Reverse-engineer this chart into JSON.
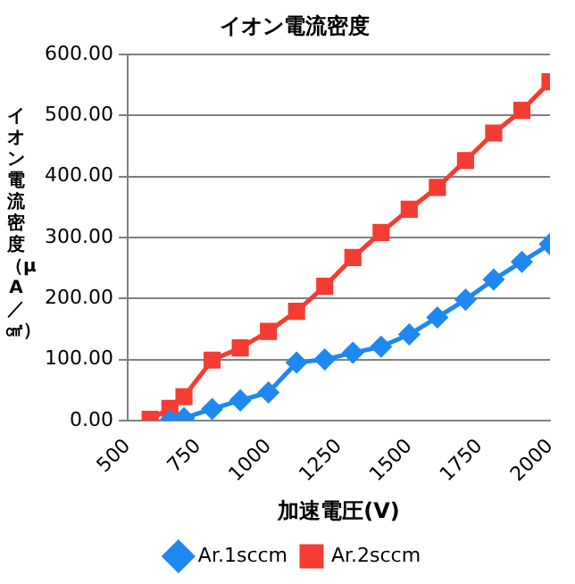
{
  "chart_data": {
    "type": "line",
    "title": "イオン電流密度",
    "xlabel": "加速電圧(V)",
    "ylabel": "イオン電流密度（μA／㎠）",
    "series": [
      {
        "name": "Ar.1sccm",
        "color": "#1e88f0",
        "marker": "diamond",
        "x": [
          650,
          700,
          800,
          900,
          1000,
          1100,
          1200,
          1300,
          1400,
          1500,
          1600,
          1700,
          1800,
          1900,
          2000
        ],
        "values": [
          0,
          4,
          19,
          33,
          46,
          95,
          100,
          111,
          121,
          141,
          169,
          198,
          231,
          260,
          289
        ]
      },
      {
        "name": "Ar.2sccm",
        "color": "#f53c32",
        "marker": "square",
        "x": [
          580,
          650,
          700,
          800,
          900,
          1000,
          1100,
          1200,
          1300,
          1400,
          1500,
          1600,
          1700,
          1800,
          1900,
          2000
        ],
        "values": [
          2,
          20,
          39,
          99,
          119,
          146,
          179,
          220,
          267,
          308,
          346,
          382,
          426,
          471,
          508,
          555
        ]
      }
    ],
    "xlim": [
      500,
      2000
    ],
    "xticks": [
      500,
      750,
      1000,
      1250,
      1500,
      1750,
      2000
    ],
    "ylim": [
      0,
      600
    ],
    "yticks": [
      {
        "value": 0,
        "label": "0.00"
      },
      {
        "value": 100,
        "label": "100.00"
      },
      {
        "value": 200,
        "label": "200.00"
      },
      {
        "value": 300,
        "label": "300.00"
      },
      {
        "value": 400,
        "label": "400.00"
      },
      {
        "value": 500,
        "label": "500.00"
      },
      {
        "value": 600,
        "label": "600.00"
      }
    ],
    "grid": "y",
    "legend": "bottom",
    "line_style": "solid"
  }
}
